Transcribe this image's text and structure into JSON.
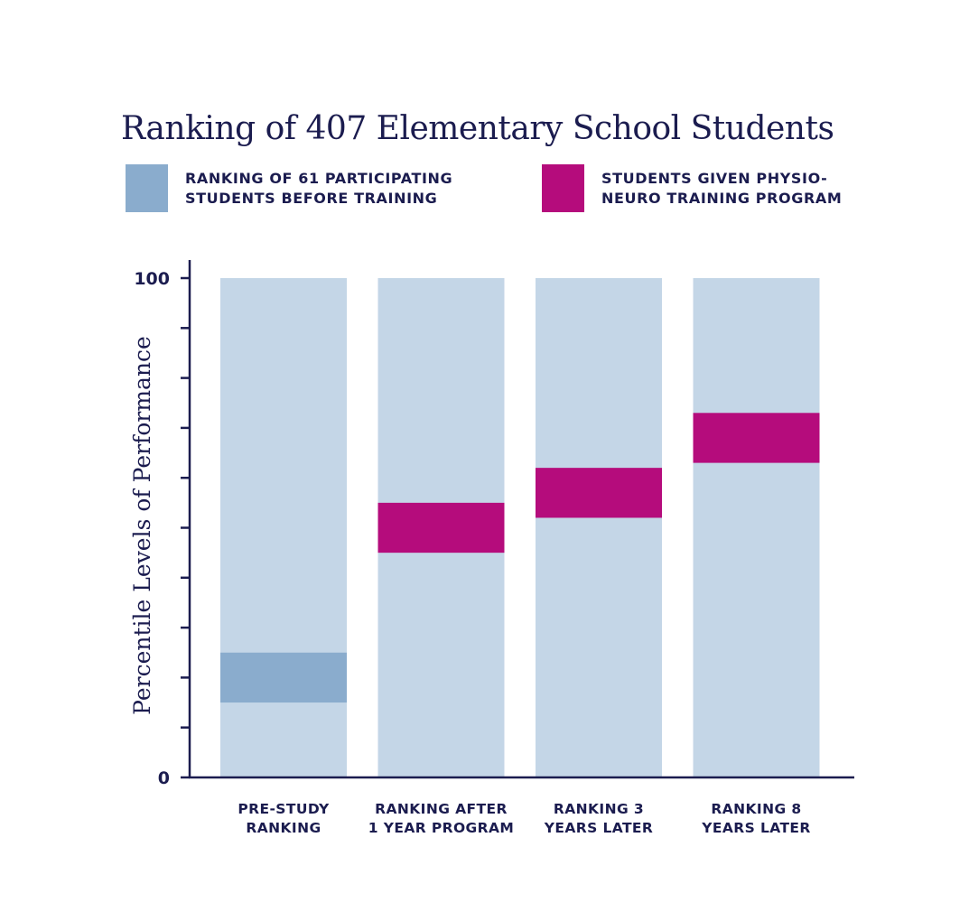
{
  "chart_data": {
    "type": "bar",
    "title": "Ranking of 407 Elementary School Students",
    "ylabel": "Percentile Levels of Performance",
    "xlabel": "",
    "ylim": [
      0,
      100
    ],
    "y_tick_labels": [
      "0",
      "100"
    ],
    "y_minor_tick_count": 10,
    "categories": [
      "PRE-STUDY\nRANKING",
      "RANKING AFTER\n1 YEAR PROGRAM",
      "RANKING 3\nYEARS LATER",
      "RANKING 8\nYEARS LATER"
    ],
    "bar_total": [
      100,
      100,
      100,
      100
    ],
    "bands": [
      {
        "category_index": 0,
        "series": "before",
        "low": 15,
        "high": 25
      },
      {
        "category_index": 1,
        "series": "program",
        "low": 45,
        "high": 55
      },
      {
        "category_index": 2,
        "series": "program",
        "low": 52,
        "high": 62
      },
      {
        "category_index": 3,
        "series": "program",
        "low": 63,
        "high": 73
      }
    ],
    "series": [
      {
        "id": "before",
        "name": "RANKING OF 61  PARTICIPATING\nSTUDENTS BEFORE TRAINING",
        "color": "#8aaccd"
      },
      {
        "id": "program",
        "name": "STUDENTS GIVEN PHYSIO-\nNEURO TRAINING PROGRAM",
        "color": "#b50c7c"
      }
    ],
    "background_bar_color": "#c4d6e7",
    "axis_color": "#1b1c4f",
    "legend_placement": "top"
  }
}
